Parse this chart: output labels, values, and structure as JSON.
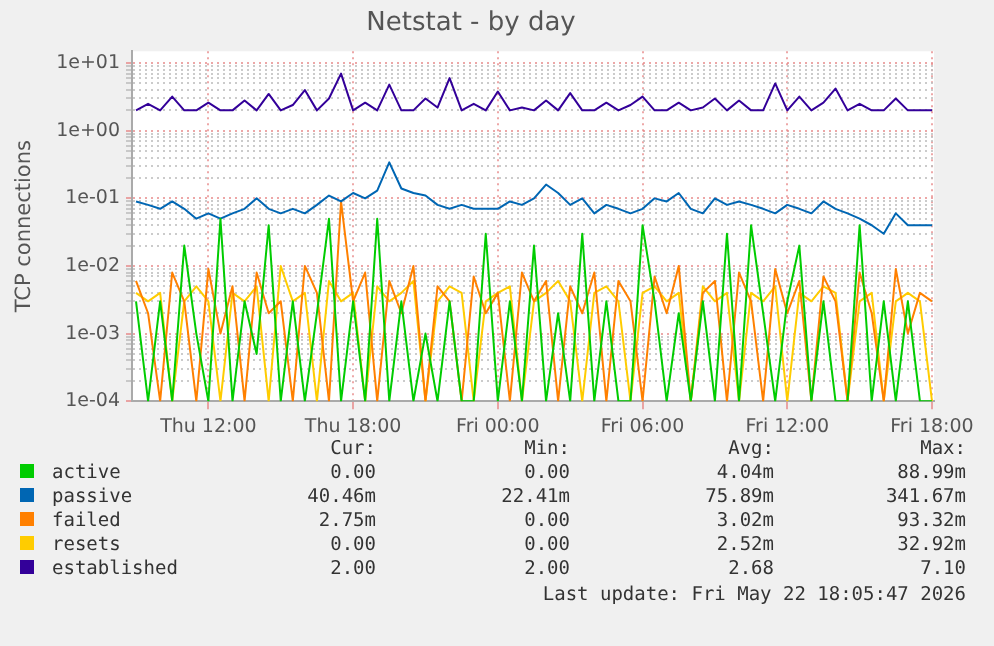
{
  "chart_data": {
    "type": "line",
    "title": "Netstat - by day",
    "ylabel": "TCP connections",
    "log": "y",
    "grid": true,
    "legend": "bottom",
    "marker": "none",
    "line_style": "solid",
    "xlim": [
      "2026-05-21T08:50",
      "2026-05-22T18:05"
    ],
    "xticks": [
      {
        "value": "2026-05-21T12:00",
        "label": "Thu 12:00"
      },
      {
        "value": "2026-05-21T18:00",
        "label": "Thu 18:00"
      },
      {
        "value": "2026-05-22T00:00",
        "label": "Fri 00:00"
      },
      {
        "value": "2026-05-22T06:00",
        "label": "Fri 06:00"
      },
      {
        "value": "2026-05-22T12:00",
        "label": "Fri 12:00"
      },
      {
        "value": "2026-05-22T18:00",
        "label": "Fri 18:00"
      }
    ],
    "ylim": [
      0.0001,
      15
    ],
    "yticks": [
      {
        "value": 0.0001,
        "label": "1e-04"
      },
      {
        "value": 0.0002,
        "label": null
      },
      {
        "value": 0.0003,
        "label": null
      },
      {
        "value": 0.0004,
        "label": null
      },
      {
        "value": 0.0005,
        "label": null
      },
      {
        "value": 0.0006,
        "label": null
      },
      {
        "value": 0.0007,
        "label": null
      },
      {
        "value": 0.0008,
        "label": null
      },
      {
        "value": 0.0009,
        "label": null
      },
      {
        "value": 0.001,
        "label": "1e-03"
      },
      {
        "value": 0.002,
        "label": null
      },
      {
        "value": 0.003,
        "label": null
      },
      {
        "value": 0.004,
        "label": null
      },
      {
        "value": 0.005,
        "label": null
      },
      {
        "value": 0.006,
        "label": null
      },
      {
        "value": 0.007,
        "label": null
      },
      {
        "value": 0.008,
        "label": null
      },
      {
        "value": 0.009,
        "label": null
      },
      {
        "value": 0.01,
        "label": "1e-02"
      },
      {
        "value": 0.02,
        "label": null
      },
      {
        "value": 0.03,
        "label": null
      },
      {
        "value": 0.04,
        "label": null
      },
      {
        "value": 0.05,
        "label": null
      },
      {
        "value": 0.06,
        "label": null
      },
      {
        "value": 0.07,
        "label": null
      },
      {
        "value": 0.08,
        "label": null
      },
      {
        "value": 0.09,
        "label": null
      },
      {
        "value": 0.1,
        "label": "1e-01"
      },
      {
        "value": 0.2,
        "label": null
      },
      {
        "value": 0.3,
        "label": null
      },
      {
        "value": 0.4,
        "label": null
      },
      {
        "value": 0.5,
        "label": null
      },
      {
        "value": 0.6,
        "label": null
      },
      {
        "value": 0.7,
        "label": null
      },
      {
        "value": 0.8,
        "label": null
      },
      {
        "value": 0.9,
        "label": null
      },
      {
        "value": 1,
        "label": "1e+00"
      },
      {
        "value": 2,
        "label": null
      },
      {
        "value": 3,
        "label": null
      },
      {
        "value": 4,
        "label": null
      },
      {
        "value": 5,
        "label": null
      },
      {
        "value": 6,
        "label": null
      },
      {
        "value": 7,
        "label": null
      },
      {
        "value": 8,
        "label": null
      },
      {
        "value": 9,
        "label": null
      },
      {
        "value": 10,
        "label": "1e+01"
      }
    ],
    "x": [
      "2026-05-21T09:00",
      "2026-05-21T09:30",
      "2026-05-21T10:00",
      "2026-05-21T10:30",
      "2026-05-21T11:00",
      "2026-05-21T11:30",
      "2026-05-21T12:00",
      "2026-05-21T12:30",
      "2026-05-21T13:00",
      "2026-05-21T13:30",
      "2026-05-21T14:00",
      "2026-05-21T14:30",
      "2026-05-21T15:00",
      "2026-05-21T15:30",
      "2026-05-21T16:00",
      "2026-05-21T16:30",
      "2026-05-21T17:00",
      "2026-05-21T17:30",
      "2026-05-21T18:00",
      "2026-05-21T18:30",
      "2026-05-21T19:00",
      "2026-05-21T19:30",
      "2026-05-21T20:00",
      "2026-05-21T20:30",
      "2026-05-21T21:00",
      "2026-05-21T21:30",
      "2026-05-21T22:00",
      "2026-05-21T22:30",
      "2026-05-21T23:00",
      "2026-05-21T23:30",
      "2026-05-22T00:00",
      "2026-05-22T00:30",
      "2026-05-22T01:00",
      "2026-05-22T01:30",
      "2026-05-22T02:00",
      "2026-05-22T02:30",
      "2026-05-22T03:00",
      "2026-05-22T03:30",
      "2026-05-22T04:00",
      "2026-05-22T04:30",
      "2026-05-22T05:00",
      "2026-05-22T05:30",
      "2026-05-22T06:00",
      "2026-05-22T06:30",
      "2026-05-22T07:00",
      "2026-05-22T07:30",
      "2026-05-22T08:00",
      "2026-05-22T08:30",
      "2026-05-22T09:00",
      "2026-05-22T09:30",
      "2026-05-22T10:00",
      "2026-05-22T10:30",
      "2026-05-22T11:00",
      "2026-05-22T11:30",
      "2026-05-22T12:00",
      "2026-05-22T12:30",
      "2026-05-22T13:00",
      "2026-05-22T13:30",
      "2026-05-22T14:00",
      "2026-05-22T14:30",
      "2026-05-22T15:00",
      "2026-05-22T15:30",
      "2026-05-22T16:00",
      "2026-05-22T16:30",
      "2026-05-22T17:00",
      "2026-05-22T17:30",
      "2026-05-22T18:00"
    ],
    "series": [
      {
        "name": "active",
        "color": "#00cc00",
        "values": [
          0.003,
          0.0001,
          0.003,
          0.0001,
          0.02,
          0.001,
          0.0001,
          0.05,
          0.0001,
          0.003,
          0.0005,
          0.04,
          0.0001,
          0.003,
          0.0001,
          0.002,
          0.05,
          0.0001,
          0.003,
          0.0001,
          0.05,
          0.0001,
          0.003,
          0.0001,
          0.001,
          0.0001,
          0.003,
          0.0001,
          0.0001,
          0.03,
          0.0001,
          0.003,
          0.0001,
          0.02,
          0.0001,
          0.002,
          0.0001,
          0.03,
          0.0001,
          0.003,
          0.0001,
          0.0001,
          0.04,
          0.003,
          0.0001,
          0.002,
          0.0001,
          0.003,
          0.0001,
          0.03,
          0.0001,
          0.04,
          0.002,
          0.0001,
          0.003,
          0.02,
          0.0001,
          0.003,
          0.0001,
          0.0001,
          0.04,
          0.0001,
          0.003,
          0.0001,
          0.003,
          0.0001,
          0.0001
        ]
      },
      {
        "name": "passive",
        "color": "#0066b3",
        "values": [
          0.09,
          0.08,
          0.07,
          0.09,
          0.07,
          0.05,
          0.06,
          0.05,
          0.06,
          0.07,
          0.1,
          0.07,
          0.06,
          0.07,
          0.06,
          0.08,
          0.11,
          0.09,
          0.12,
          0.1,
          0.13,
          0.34,
          0.14,
          0.12,
          0.11,
          0.08,
          0.07,
          0.08,
          0.07,
          0.07,
          0.07,
          0.09,
          0.08,
          0.1,
          0.16,
          0.12,
          0.08,
          0.1,
          0.06,
          0.08,
          0.07,
          0.06,
          0.07,
          0.1,
          0.09,
          0.12,
          0.07,
          0.06,
          0.1,
          0.08,
          0.09,
          0.08,
          0.07,
          0.06,
          0.08,
          0.07,
          0.06,
          0.09,
          0.07,
          0.06,
          0.05,
          0.04,
          0.03,
          0.06,
          0.04,
          0.04,
          0.04
        ]
      },
      {
        "name": "failed",
        "color": "#ff8000",
        "values": [
          0.006,
          0.002,
          0.0001,
          0.008,
          0.003,
          0.0001,
          0.009,
          0.001,
          0.005,
          0.0001,
          0.008,
          0.002,
          0.003,
          0.0001,
          0.01,
          0.004,
          0.0001,
          0.09,
          0.003,
          0.008,
          0.0001,
          0.006,
          0.002,
          0.01,
          0.0001,
          0.005,
          0.003,
          0.0001,
          0.007,
          0.002,
          0.004,
          0.0001,
          0.008,
          0.003,
          0.006,
          0.0001,
          0.005,
          0.002,
          0.008,
          0.0001,
          0.006,
          0.003,
          0.0001,
          0.007,
          0.002,
          0.01,
          0.0001,
          0.004,
          0.006,
          0.0001,
          0.008,
          0.003,
          0.0001,
          0.009,
          0.002,
          0.006,
          0.0001,
          0.007,
          0.003,
          0.0001,
          0.008,
          0.002,
          0.0001,
          0.009,
          0.001,
          0.004,
          0.003
        ]
      },
      {
        "name": "resets",
        "color": "#ffcc00",
        "values": [
          0.004,
          0.003,
          0.004,
          0.0001,
          0.003,
          0.005,
          0.003,
          0.0001,
          0.004,
          0.003,
          0.005,
          0.0001,
          0.01,
          0.003,
          0.004,
          0.0001,
          0.006,
          0.003,
          0.004,
          0.0001,
          0.005,
          0.003,
          0.004,
          0.006,
          0.0001,
          0.003,
          0.005,
          0.004,
          0.0001,
          0.003,
          0.004,
          0.005,
          0.0001,
          0.003,
          0.004,
          0.006,
          0.003,
          0.0001,
          0.004,
          0.005,
          0.003,
          0.0001,
          0.004,
          0.005,
          0.003,
          0.004,
          0.0001,
          0.005,
          0.003,
          0.004,
          0.0001,
          0.004,
          0.003,
          0.005,
          0.0001,
          0.004,
          0.003,
          0.005,
          0.004,
          0.0001,
          0.003,
          0.004,
          0.0001,
          0.003,
          0.004,
          0.003,
          0.0001
        ]
      },
      {
        "name": "established",
        "color": "#330099",
        "values": [
          2,
          2.5,
          2,
          3.2,
          2,
          2,
          2.6,
          2,
          2,
          2.8,
          2,
          3.5,
          2,
          2.4,
          4,
          2,
          3,
          7,
          2,
          2.6,
          2,
          4.8,
          2,
          2,
          3,
          2.2,
          6,
          2,
          2.5,
          2,
          3.8,
          2,
          2.2,
          2,
          2.8,
          2,
          3.6,
          2,
          2,
          2.6,
          2,
          2.4,
          3.2,
          2,
          2,
          2.6,
          2,
          2.2,
          3,
          2,
          2.8,
          2,
          2,
          5,
          2,
          3.2,
          2,
          2.6,
          4.2,
          2,
          2.5,
          2,
          2,
          3,
          2,
          2,
          2
        ]
      }
    ],
    "annotations": [
      "Cur:",
      "Min:",
      "Avg:",
      "Max:",
      "0.00",
      "0.00",
      "4.04m",
      "88.99m",
      "40.46m",
      "22.41m",
      "75.89m",
      "341.67m",
      "2.75m",
      "0.00",
      "3.02m",
      "93.32m",
      "0.00",
      "0.00",
      "2.52m",
      "32.92m",
      "2.00",
      "2.00",
      "2.68",
      "7.10",
      "Last update: Fri May 22 18:05:47 2026"
    ]
  }
}
